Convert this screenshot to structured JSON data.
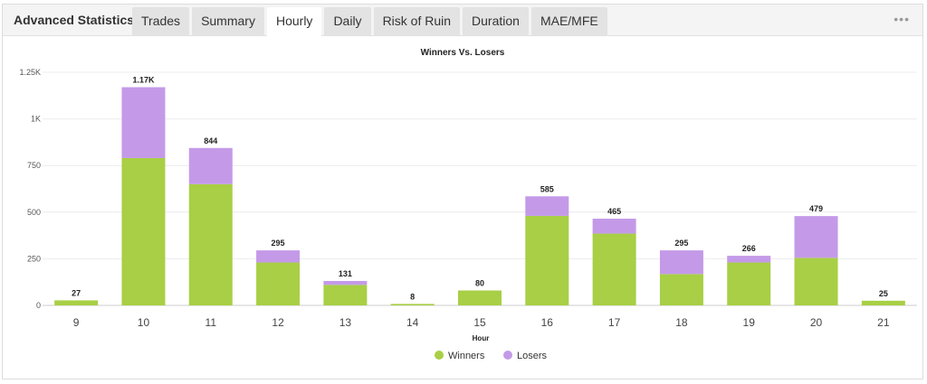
{
  "header": {
    "title": "Advanced Statistics",
    "tabs": [
      {
        "label": "Trades",
        "active": false
      },
      {
        "label": "Summary",
        "active": false
      },
      {
        "label": "Hourly",
        "active": true
      },
      {
        "label": "Daily",
        "active": false
      },
      {
        "label": "Risk of Ruin",
        "active": false
      },
      {
        "label": "Duration",
        "active": false
      },
      {
        "label": "MAE/MFE",
        "active": false
      }
    ],
    "more_icon": "more-horizontal-icon"
  },
  "chart_data": {
    "type": "bar",
    "stacked": true,
    "title": "Winners Vs. Losers",
    "xlabel": "Hour",
    "ylabel": "",
    "ylim": [
      0,
      1250
    ],
    "yticks": [
      0,
      250,
      500,
      750,
      1000,
      1250
    ],
    "ytick_labels": [
      "0",
      "250",
      "500",
      "750",
      "1K",
      "1.25K"
    ],
    "categories": [
      "9",
      "10",
      "11",
      "12",
      "13",
      "14",
      "15",
      "16",
      "17",
      "18",
      "19",
      "20",
      "21"
    ],
    "series": [
      {
        "name": "Winners",
        "color": "#a8cf45",
        "values": [
          27,
          790,
          650,
          230,
          110,
          8,
          80,
          480,
          385,
          168,
          230,
          255,
          25
        ]
      },
      {
        "name": "Losers",
        "color": "#c49ae8",
        "values": [
          0,
          380,
          194,
          65,
          21,
          0,
          0,
          105,
          80,
          127,
          36,
          224,
          0
        ]
      }
    ],
    "totals": [
      "27",
      "1.17K",
      "844",
      "295",
      "131",
      "8",
      "80",
      "585",
      "465",
      "295",
      "266",
      "479",
      "25"
    ],
    "grid": true,
    "legend_position": "bottom-center"
  }
}
